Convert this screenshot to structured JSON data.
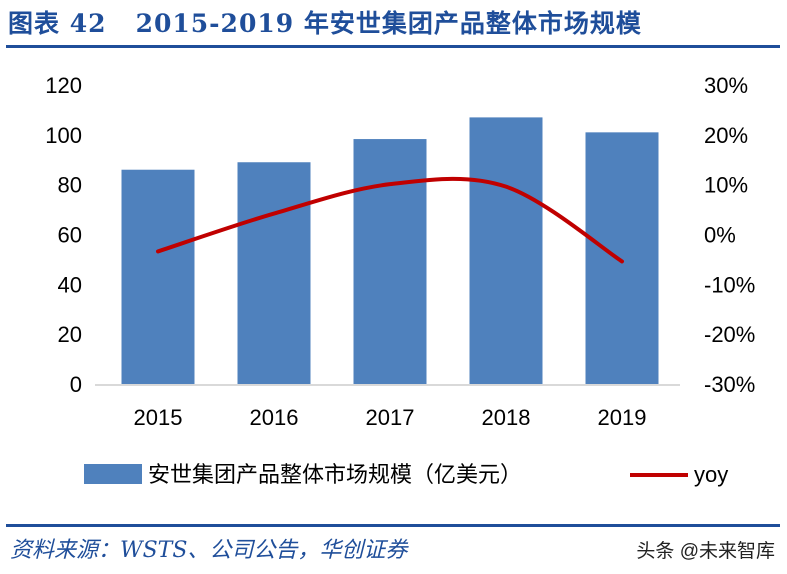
{
  "header": {
    "title": "图表 42   2015-2019 年安世集团产品整体市场规模"
  },
  "footer": {
    "source": "资料来源：WSTS、公司公告，华创证券",
    "watermark": "头条 @未来智库"
  },
  "colors": {
    "bar": "#4f81bd",
    "line": "#c00000",
    "accent": "#1f4e9a"
  },
  "chart_data": {
    "type": "bar+line",
    "categories": [
      "2015",
      "2016",
      "2017",
      "2018",
      "2019"
    ],
    "series": [
      {
        "name": "安世集团产品整体市场规模（亿美元）",
        "type": "bar",
        "axis": "left",
        "values": [
          86,
          89,
          98.3,
          107,
          101
        ]
      },
      {
        "name": "yoy",
        "type": "line",
        "axis": "right",
        "values": [
          -3.4,
          4.2,
          10.1,
          9.6,
          -5.4
        ]
      }
    ],
    "left_axis": {
      "ylim": [
        0,
        120
      ],
      "ticks": [
        "0",
        "20",
        "40",
        "60",
        "80",
        "100",
        "120"
      ]
    },
    "right_axis": {
      "ylim": [
        -30,
        30
      ],
      "ticks": [
        "-30%",
        "-20%",
        "-10%",
        "0%",
        "10%",
        "20%",
        "30%"
      ]
    },
    "grid": false,
    "legend": "bottom"
  }
}
